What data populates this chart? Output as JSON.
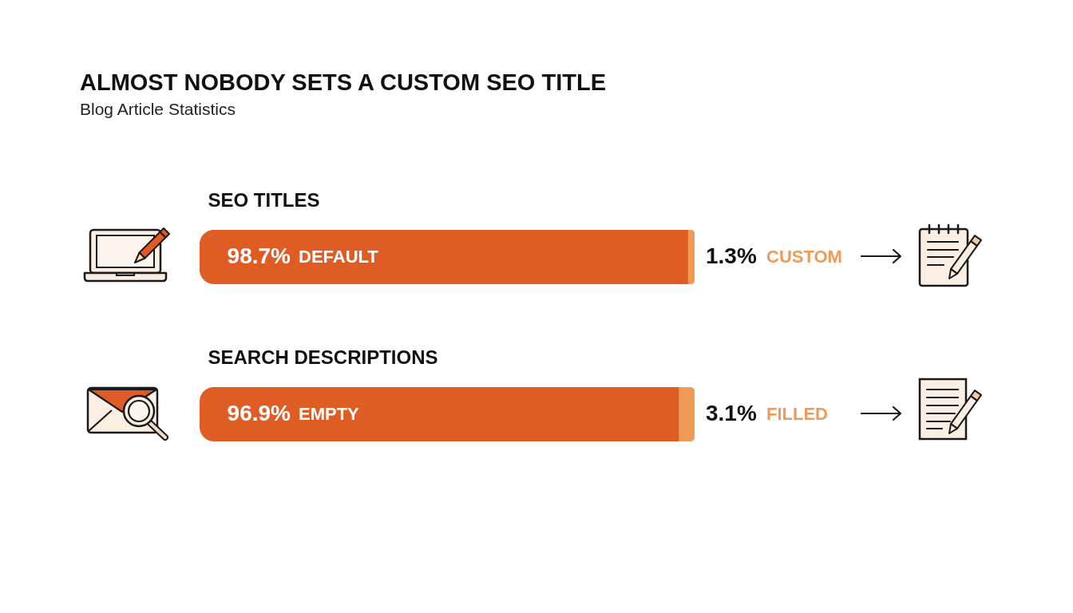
{
  "chart_data": [
    {
      "type": "bar",
      "title": "ALMOST NOBODY SETS A CUSTOM SEO TITLE",
      "subtitle": "Blog Article Statistics",
      "orientation": "horizontal",
      "stacked": true,
      "tick_labels": "y",
      "categories": [
        "SEO TITLES"
      ],
      "series": [
        {
          "name": "DEFAULT",
          "color": "#df5d24",
          "values": [
            98.7
          ],
          "value_labels": [
            "98.7%"
          ]
        },
        {
          "name": "CUSTOM",
          "color": "#f09a58",
          "values": [
            1.3
          ],
          "value_labels": [
            "1.3%"
          ]
        }
      ]
    },
    {
      "type": "bar",
      "orientation": "horizontal",
      "stacked": true,
      "tick_labels": "y",
      "categories": [
        "SEARCH DESCRIPTIONS"
      ],
      "series": [
        {
          "name": "EMPTY",
          "color": "#df5d24",
          "values": [
            96.9
          ],
          "value_labels": [
            "96.9%"
          ]
        },
        {
          "name": "FILLED",
          "color": "#f09a58",
          "values": [
            3.1
          ],
          "value_labels": [
            "3.1%"
          ]
        }
      ]
    }
  ]
}
